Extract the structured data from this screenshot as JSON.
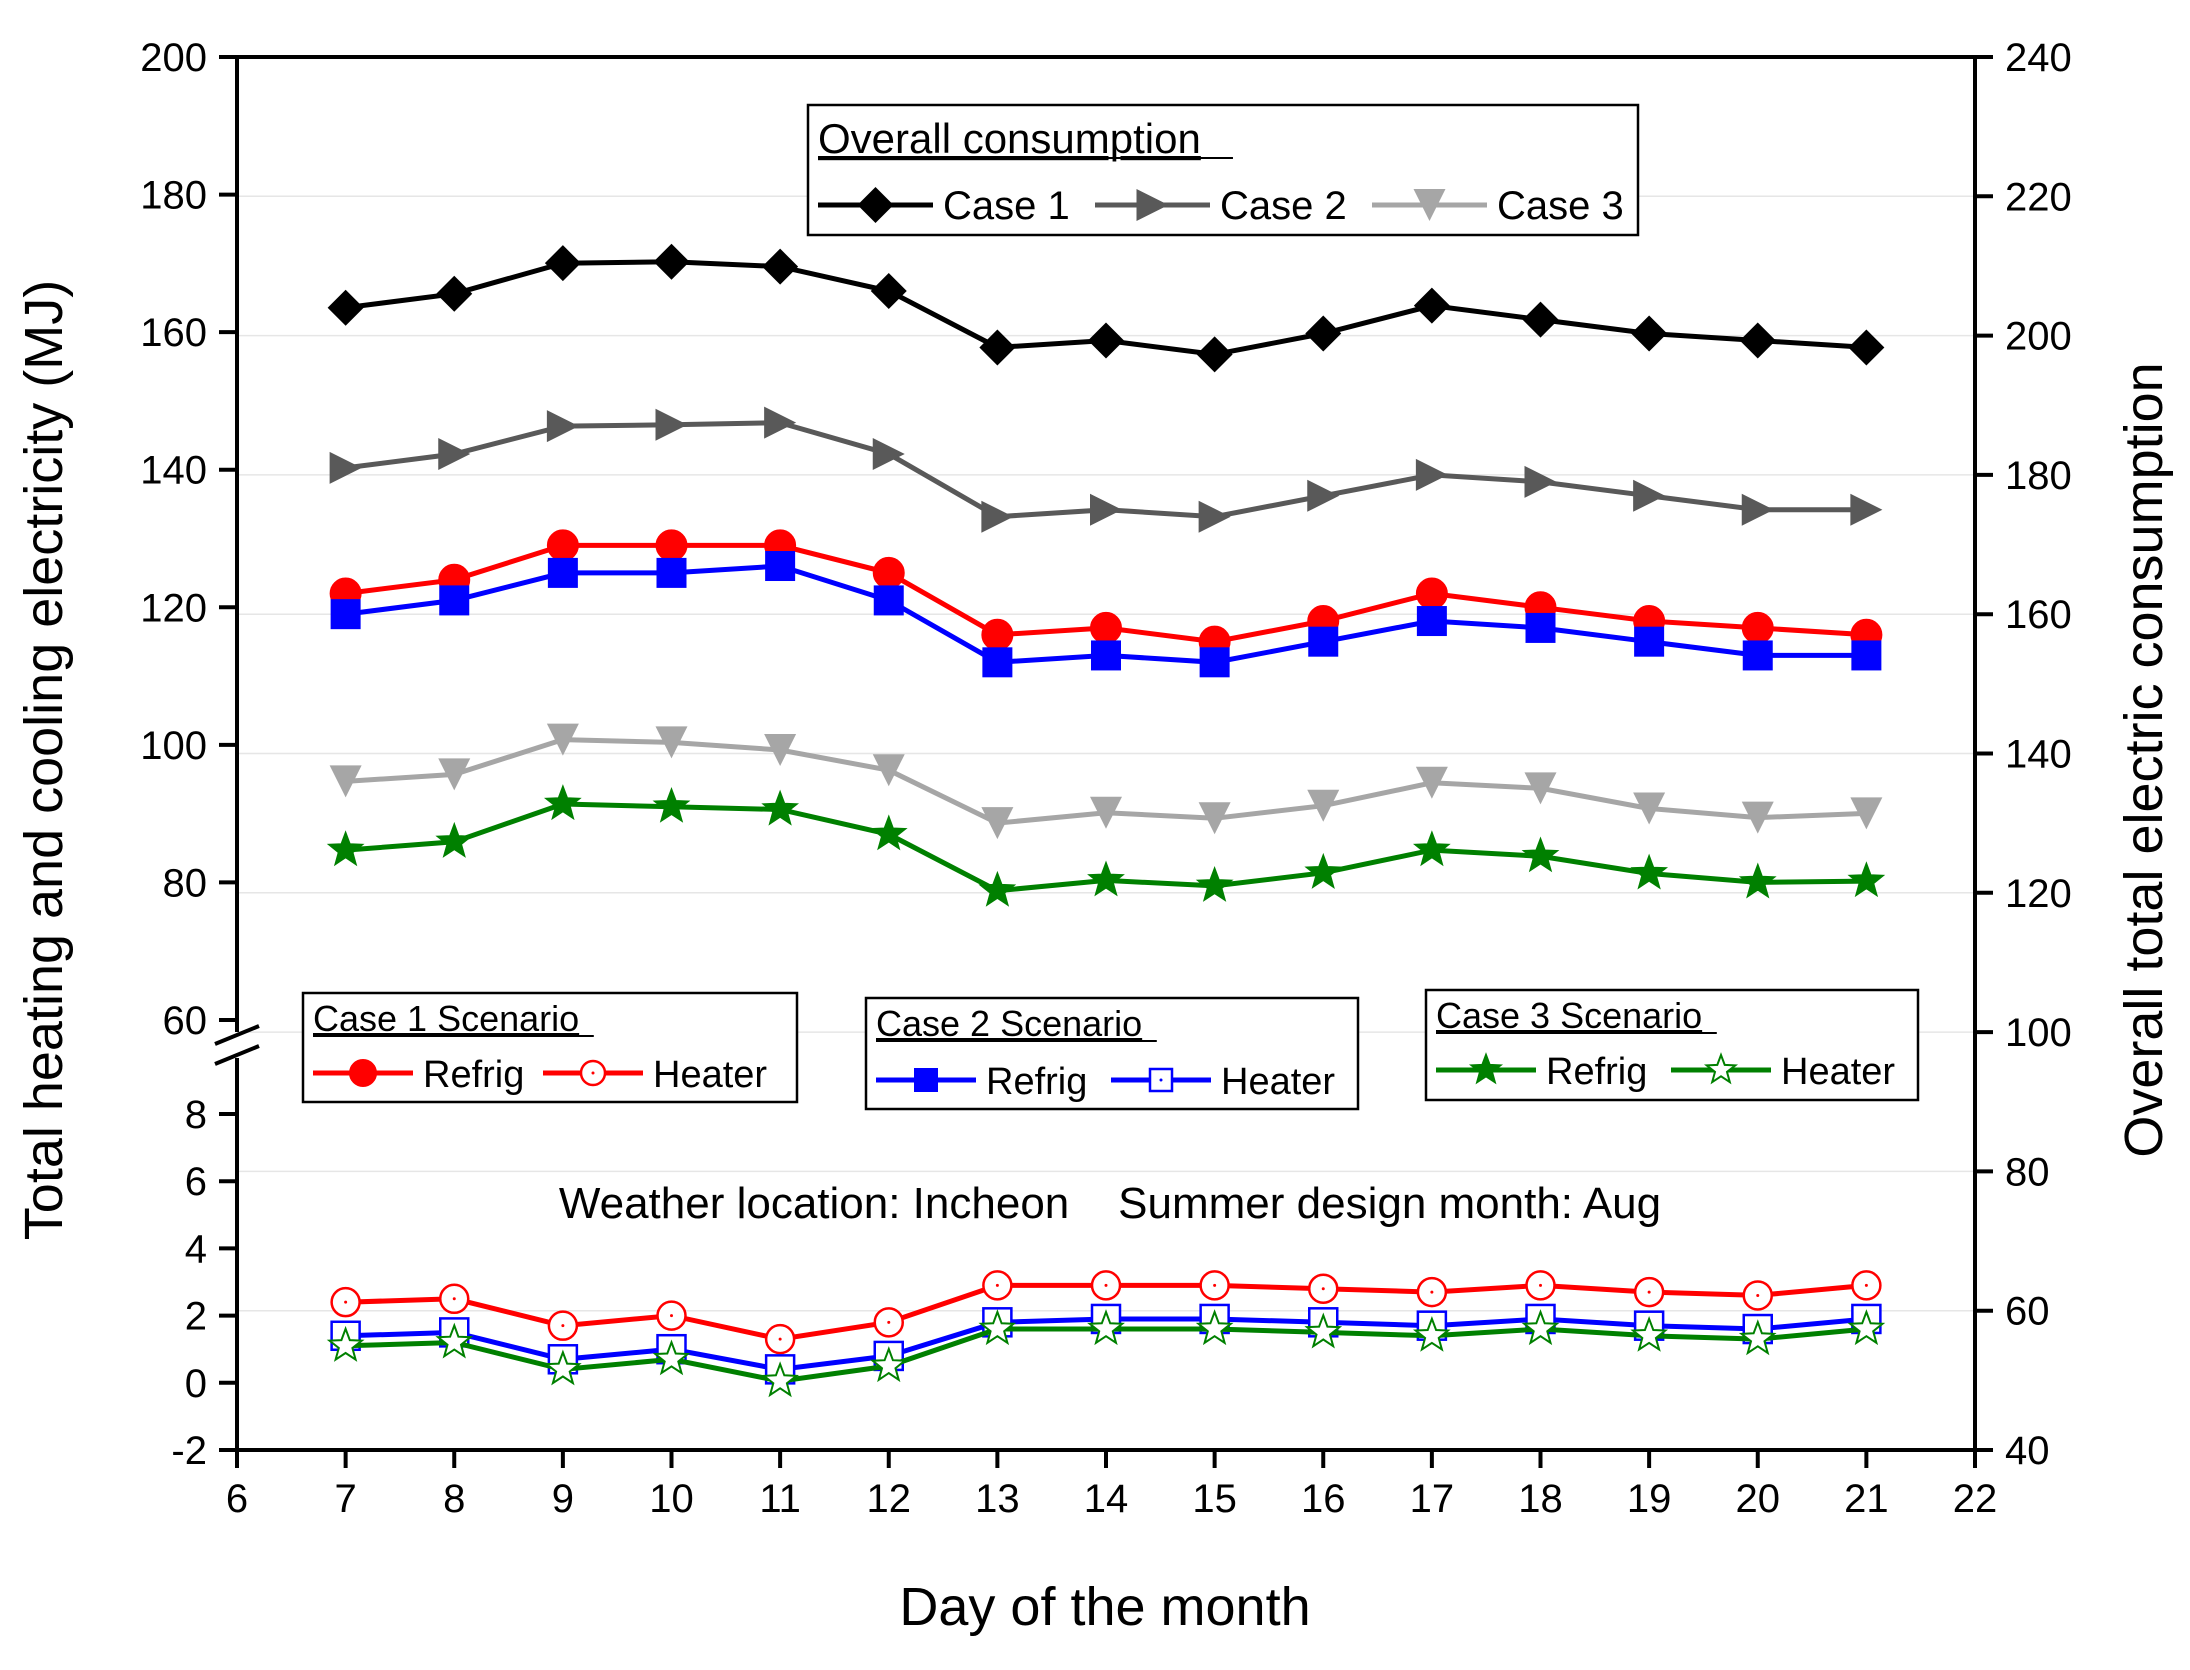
{
  "chart_data": {
    "type": "line",
    "x": [
      7,
      8,
      9,
      10,
      11,
      12,
      13,
      14,
      15,
      16,
      17,
      18,
      19,
      20,
      21
    ],
    "xlabel": "Day of the month",
    "ylabel_left": "Total heating and cooling electricity (MJ)",
    "ylabel_right": "Overall total electric consumption",
    "xticks": [
      "6",
      "7",
      "8",
      "9",
      "10",
      "11",
      "12",
      "13",
      "14",
      "15",
      "16",
      "17",
      "18",
      "19",
      "20",
      "21",
      "22"
    ],
    "yticks_left_upper": [
      "60",
      "80",
      "100",
      "120",
      "140",
      "160",
      "180",
      "200"
    ],
    "yticks_left_lower": [
      "-2",
      "0",
      "2",
      "4",
      "6",
      "8"
    ],
    "yticks_right": [
      "40",
      "60",
      "80",
      "100",
      "120",
      "140",
      "160",
      "180",
      "200",
      "220",
      "240"
    ],
    "xlim": [
      6,
      22
    ],
    "ylim_left_upper": [
      60,
      200
    ],
    "ylim_left_lower": [
      -2,
      9.5
    ],
    "ylim_right": [
      40,
      240
    ],
    "annotation": "Weather location: Incheon    Summer design month: Aug",
    "legends": {
      "overall": {
        "title": "Overall consumption",
        "entries": [
          "Case 1",
          "Case 2",
          "Case 3"
        ]
      },
      "case1": {
        "title": "Case 1 Scenario",
        "entries": [
          "Refrig",
          "Heater"
        ]
      },
      "case2": {
        "title": "Case 2 Scenario",
        "entries": [
          "Refrig",
          "Heater"
        ]
      },
      "case3": {
        "title": "Case 3 Scenario",
        "entries": [
          "Refrig",
          "Heater"
        ]
      }
    },
    "series": [
      {
        "name": "Case 1 Refrig",
        "axis": "left",
        "color": "#ff0000",
        "marker": "circle-filled",
        "values": [
          122,
          124,
          129,
          129,
          129,
          125,
          116,
          117,
          115,
          118,
          122,
          120,
          118,
          117,
          116
        ]
      },
      {
        "name": "Case 2 Refrig",
        "axis": "left",
        "color": "#0000ff",
        "marker": "square-filled",
        "values": [
          119,
          121,
          125,
          125,
          126,
          121,
          112,
          113,
          112,
          115,
          118,
          117,
          115,
          113,
          113
        ]
      },
      {
        "name": "Case 3 Refrig",
        "axis": "left",
        "color": "#008000",
        "marker": "star-filled",
        "values": [
          84.7,
          85.9,
          91.4,
          91.0,
          90.6,
          87.0,
          78.8,
          80.3,
          79.5,
          81.4,
          84.7,
          83.8,
          81.3,
          80.0,
          80.2
        ]
      },
      {
        "name": "Case 1 Heater",
        "axis": "left",
        "color": "#ff0000",
        "marker": "circle-open",
        "values": [
          2.4,
          2.5,
          1.7,
          2.0,
          1.3,
          1.8,
          2.9,
          2.9,
          2.9,
          2.8,
          2.7,
          2.9,
          2.7,
          2.6,
          2.9
        ]
      },
      {
        "name": "Case 2 Heater",
        "axis": "left",
        "color": "#0000ff",
        "marker": "square-open",
        "values": [
          1.4,
          1.5,
          0.7,
          1.0,
          0.4,
          0.8,
          1.8,
          1.9,
          1.9,
          1.8,
          1.7,
          1.9,
          1.7,
          1.6,
          1.9
        ]
      },
      {
        "name": "Case 3 Heater",
        "axis": "left",
        "color": "#008000",
        "marker": "star-open",
        "values": [
          1.1,
          1.2,
          0.4,
          0.7,
          0.05,
          0.5,
          1.6,
          1.6,
          1.6,
          1.5,
          1.4,
          1.6,
          1.4,
          1.3,
          1.6
        ]
      },
      {
        "name": "Case 1",
        "axis": "right",
        "color": "#000000",
        "marker": "diamond",
        "values": [
          204,
          206,
          210.4,
          210.6,
          209.9,
          206.4,
          198.3,
          199.3,
          197.3,
          200.3,
          204.3,
          202.3,
          200.3,
          199.3,
          198.3
        ]
      },
      {
        "name": "Case 2",
        "axis": "right",
        "color": "#595959",
        "marker": "triangle-right",
        "values": [
          181,
          183,
          187,
          187.2,
          187.5,
          183,
          174,
          175,
          174,
          177,
          180,
          179,
          177,
          175,
          175
        ]
      },
      {
        "name": "Case 3",
        "axis": "right",
        "color": "#a6a6a6",
        "marker": "triangle-down",
        "values": [
          136,
          137,
          142,
          141.6,
          140.5,
          137.6,
          130,
          131.5,
          130.7,
          132.5,
          135.8,
          135,
          132.1,
          130.8,
          131.4
        ]
      }
    ]
  }
}
